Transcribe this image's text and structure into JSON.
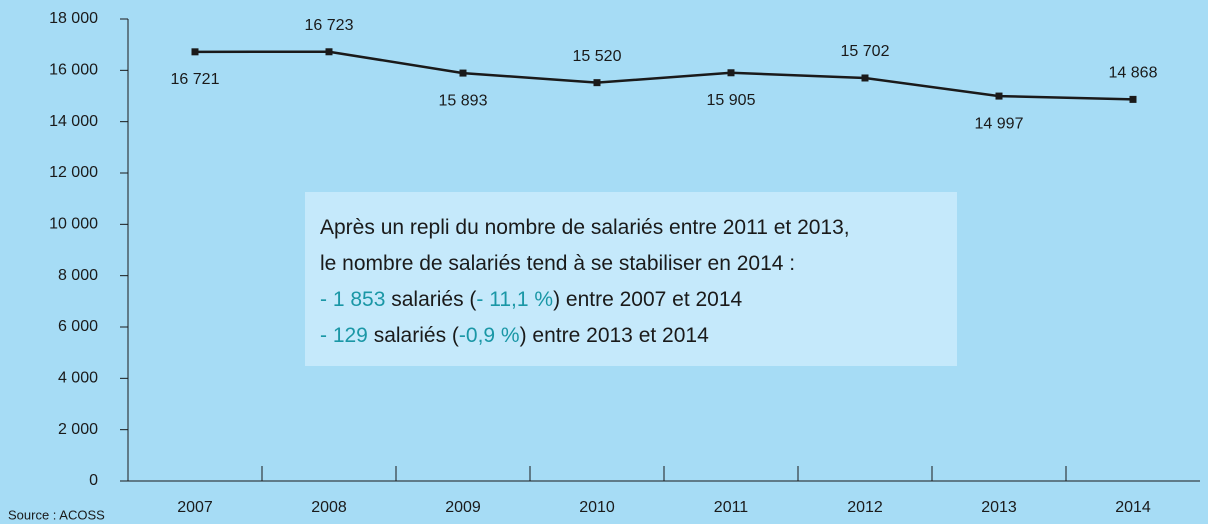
{
  "chart_data": {
    "type": "line",
    "categories": [
      "2007",
      "2008",
      "2009",
      "2010",
      "2011",
      "2012",
      "2013",
      "2014"
    ],
    "values": [
      16721,
      16723,
      15893,
      15520,
      15905,
      15702,
      14997,
      14868
    ],
    "value_labels": [
      "16 721",
      "16 723",
      "15 893",
      "15 520",
      "15 905",
      "15 702",
      "14 997",
      "14 868"
    ],
    "color": "#1a1a1a",
    "ylim": [
      0,
      18000
    ],
    "yticks": [
      0,
      {
        "value": 2000,
        "label": "2 000"
      },
      {
        "value": 4000,
        "label": "4 000"
      },
      {
        "value": 6000,
        "label": "6 000"
      },
      {
        "value": 8000,
        "label": "8 000"
      },
      {
        "value": 10000,
        "label": "10 000"
      },
      {
        "value": 12000,
        "label": "12 000"
      },
      {
        "value": 14000,
        "label": "14 000"
      },
      {
        "value": 16000,
        "label": "16 000"
      },
      {
        "value": 18000,
        "label": "18 000"
      }
    ],
    "annotation": {
      "highlight_color": "#1a97a6",
      "lines": [
        [
          "Après un repli du nombre de salariés entre 2011 et 2013,"
        ],
        [
          "le nombre de salariés tend à se stabiliser en 2014 :"
        ],
        [
          "- 1 853",
          " salariés (",
          "- 11,1 %",
          ") entre 2007 et 2014"
        ],
        [
          "- 129",
          " salariés (",
          "-0,9 %",
          ") entre 2013 et 2014"
        ]
      ]
    },
    "source": "Source : ACOSS"
  }
}
